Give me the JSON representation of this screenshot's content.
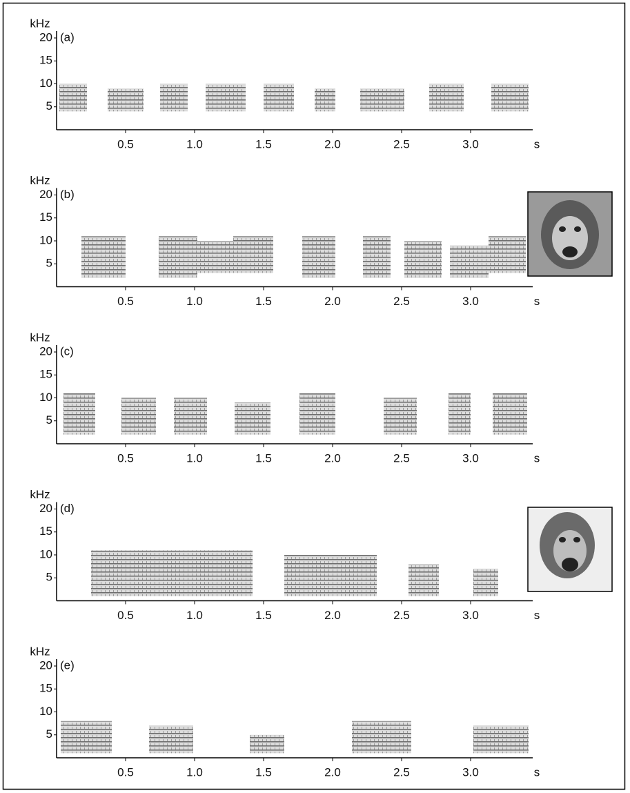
{
  "chart_data": [
    {
      "type": "spectrogram",
      "panel_label": "(a)",
      "y_label": "kHz",
      "x_label": "s",
      "ylim": [
        0,
        20
      ],
      "yticks": [
        5,
        10,
        15,
        20
      ],
      "xlim": [
        0,
        3.5
      ],
      "xticks": [
        0.5,
        {
          "value": 1,
          "label": "1.0"
        },
        1.5,
        {
          "value": 2,
          "label": "2.0"
        },
        2.5,
        {
          "value": 3,
          "label": "3.0"
        }
      ],
      "calls": [
        [
          0.02,
          0.22,
          4,
          10
        ],
        [
          0.37,
          0.63,
          4,
          9
        ],
        [
          0.75,
          0.95,
          4,
          10
        ],
        [
          1.08,
          1.37,
          4,
          10
        ],
        [
          1.5,
          1.72,
          4,
          10
        ],
        [
          1.87,
          2.02,
          4,
          9
        ],
        [
          2.2,
          2.52,
          4,
          9
        ],
        [
          2.7,
          2.95,
          4,
          10
        ],
        [
          3.15,
          3.42,
          4,
          10
        ]
      ]
    },
    {
      "type": "spectrogram",
      "panel_label": "(b)",
      "y_label": "kHz",
      "x_label": "s",
      "ylim": [
        0,
        20
      ],
      "yticks": [
        5,
        10,
        15,
        20
      ],
      "xlim": [
        0,
        3.5
      ],
      "xticks": [
        0.5,
        {
          "value": 1,
          "label": "1.0"
        },
        1.5,
        {
          "value": 2,
          "label": "2.0"
        },
        2.5,
        {
          "value": 3,
          "label": "3.0"
        }
      ],
      "calls": [
        [
          0.18,
          0.5,
          2,
          11
        ],
        [
          0.74,
          1.02,
          2,
          11
        ],
        [
          1.02,
          1.28,
          3,
          10
        ],
        [
          1.28,
          1.57,
          3,
          11
        ],
        [
          1.78,
          2.02,
          2,
          11
        ],
        [
          2.22,
          2.42,
          2,
          11
        ],
        [
          2.52,
          2.79,
          2,
          10
        ],
        [
          2.85,
          3.13,
          2,
          9
        ],
        [
          3.13,
          3.4,
          3,
          11
        ]
      ]
    },
    {
      "type": "spectrogram",
      "panel_label": "(c)",
      "y_label": "kHz",
      "x_label": "s",
      "ylim": [
        0,
        20
      ],
      "yticks": [
        5,
        10,
        15,
        20
      ],
      "xlim": [
        0,
        3.5
      ],
      "xticks": [
        0.5,
        {
          "value": 1,
          "label": "1.0"
        },
        1.5,
        {
          "value": 2,
          "label": "2.0"
        },
        2.5,
        {
          "value": 3,
          "label": "3.0"
        }
      ],
      "calls": [
        [
          0.05,
          0.28,
          2,
          11
        ],
        [
          0.47,
          0.72,
          2,
          10
        ],
        [
          0.85,
          1.09,
          2,
          10
        ],
        [
          1.29,
          1.55,
          2,
          9
        ],
        [
          1.76,
          2.02,
          2,
          11
        ],
        [
          2.37,
          2.61,
          2,
          10
        ],
        [
          2.84,
          3.0,
          2,
          11
        ],
        [
          3.16,
          3.41,
          2,
          11
        ]
      ]
    },
    {
      "type": "spectrogram",
      "panel_label": "(d)",
      "y_label": "kHz",
      "x_label": "s",
      "ylim": [
        0,
        20
      ],
      "yticks": [
        5,
        10,
        15,
        20
      ],
      "xlim": [
        0,
        3.5
      ],
      "xticks": [
        0.5,
        {
          "value": 1,
          "label": "1.0"
        },
        1.5,
        {
          "value": 2,
          "label": "2.0"
        },
        2.5,
        {
          "value": 3,
          "label": "3.0"
        }
      ],
      "calls": [
        [
          0.25,
          1.42,
          1,
          11
        ],
        [
          1.65,
          2.32,
          1,
          10
        ],
        [
          2.55,
          2.77,
          1,
          8
        ],
        [
          3.02,
          3.2,
          1,
          7
        ]
      ]
    },
    {
      "type": "spectrogram",
      "panel_label": "(e)",
      "y_label": "kHz",
      "x_label": "s",
      "ylim": [
        0,
        20
      ],
      "yticks": [
        5,
        10,
        15,
        20
      ],
      "xlim": [
        0,
        3.5
      ],
      "xticks": [
        0.5,
        {
          "value": 1,
          "label": "1.0"
        },
        1.5,
        {
          "value": 2,
          "label": "2.0"
        },
        2.5,
        {
          "value": 3,
          "label": "3.0"
        }
      ],
      "calls": [
        [
          0.03,
          0.4,
          1,
          8
        ],
        [
          0.67,
          0.99,
          1,
          7
        ],
        [
          1.4,
          1.65,
          1,
          5
        ],
        [
          2.14,
          2.57,
          1,
          8
        ],
        [
          3.02,
          3.42,
          1,
          7
        ]
      ]
    }
  ]
}
